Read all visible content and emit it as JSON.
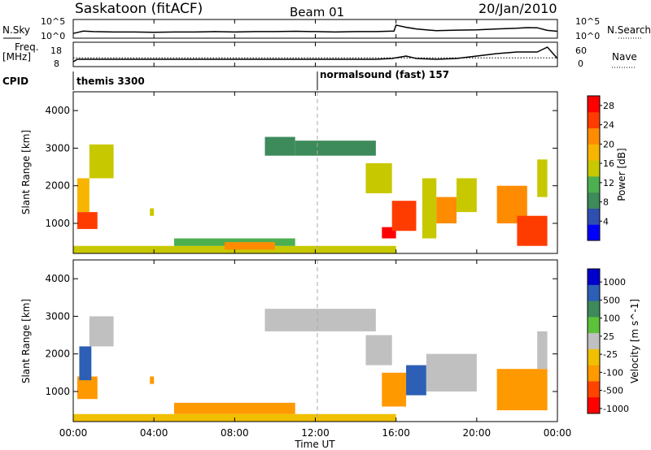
{
  "header": {
    "title": "Saskatoon (fitACF)",
    "beam": "Beam 01",
    "date": "20/Jan/2010"
  },
  "noise_panel": {
    "left_label": "N.Sky",
    "right_label": "N.Search",
    "y_ticks": [
      "10^5",
      "10^0"
    ]
  },
  "freq_panel": {
    "left_label_line1": "Freq.",
    "left_label_line2": "[MHz]",
    "left_ticks": [
      "18",
      "8"
    ],
    "right_label": "Nave",
    "right_ticks": [
      "60",
      "0"
    ]
  },
  "cpid": {
    "label": "CPID",
    "programs": [
      {
        "name": "themis 3300",
        "start_hour": 0
      },
      {
        "name": "normalsound (fast) 157",
        "start_hour": 12
      }
    ]
  },
  "x_axis": {
    "title": "Time UT",
    "ticks": [
      "00:00",
      "04:00",
      "08:00",
      "12:00",
      "16:00",
      "20:00",
      "00:00"
    ],
    "range_hours": [
      0,
      24
    ]
  },
  "colors": {
    "power_scale": [
      "#0000ff",
      "#2e4fb0",
      "#3d8a5b",
      "#4caf50",
      "#c8c800",
      "#f7b500",
      "#ff8c00",
      "#ff3c00",
      "#ff0000"
    ],
    "velocity_scale": [
      "#0000cc",
      "#2c5fb5",
      "#3d8a5b",
      "#5cc23a",
      "#c0c0c0",
      "#f0c000",
      "#ff9900",
      "#ff4400",
      "#ff0000"
    ],
    "missing": "#ffffff",
    "dashed_marker": "#999999"
  },
  "chart_data": [
    {
      "type": "line",
      "name": "noise",
      "x_unit": "hours UT",
      "y_scale": "log",
      "ylim": [
        1,
        100000
      ],
      "series": [
        {
          "name": "N.Sky",
          "x": [
            0,
            0.5,
            1,
            2,
            3,
            4,
            5,
            6,
            7,
            8,
            9,
            10,
            11,
            12,
            13,
            14,
            15,
            15.9,
            16,
            16.5,
            17,
            17.5,
            18,
            19,
            20,
            21,
            22,
            22.5,
            23,
            23.5,
            24
          ],
          "y": [
            10,
            60,
            40,
            30,
            30,
            25,
            30,
            30,
            40,
            30,
            40,
            40,
            50,
            40,
            30,
            40,
            40,
            60,
            5000,
            1000,
            300,
            150,
            80,
            120,
            150,
            300,
            500,
            800,
            700,
            100,
            50
          ]
        }
      ]
    },
    {
      "type": "line",
      "name": "frequency_and_nave",
      "x_unit": "hours UT",
      "series": [
        {
          "name": "Freq.",
          "unit": "MHz",
          "ylim": [
            8,
            18
          ],
          "x": [
            0,
            0.2,
            3,
            8,
            12,
            15,
            15.8,
            16.5,
            17,
            18,
            19,
            20,
            21,
            22,
            23,
            23.5,
            24
          ],
          "y": [
            9,
            10.5,
            10.5,
            10.5,
            10.5,
            10.5,
            11,
            12.5,
            11,
            10.5,
            11,
            12.5,
            14,
            15,
            15,
            18,
            11
          ]
        },
        {
          "name": "Nave",
          "ylim": [
            0,
            60
          ],
          "x": [
            0,
            4,
            8,
            12,
            15,
            16,
            17,
            18,
            20,
            21,
            22,
            23,
            24
          ],
          "y": [
            22,
            22,
            22,
            22,
            22,
            22,
            22,
            22,
            22,
            22,
            22,
            22,
            22
          ]
        }
      ]
    },
    {
      "type": "heatmap",
      "name": "power",
      "xlabel": "Time UT",
      "ylabel": "Slant Range [km]",
      "colorbar_label": "Power [dB]",
      "colorbar_ticks": [
        4,
        8,
        12,
        16,
        20,
        24,
        28
      ],
      "clim": [
        0,
        30
      ],
      "ylim": [
        200,
        4500
      ],
      "y_ticks": [
        1000,
        2000,
        3000,
        4000
      ],
      "patches": [
        {
          "t0": 0.2,
          "t1": 1.2,
          "r0": 850,
          "r1": 1300,
          "v": 26
        },
        {
          "t0": 0.2,
          "t1": 0.8,
          "r0": 1300,
          "r1": 2200,
          "v": 18
        },
        {
          "t0": 0.8,
          "t1": 2.0,
          "r0": 2200,
          "r1": 3100,
          "v": 14
        },
        {
          "t0": 3.8,
          "t1": 4.0,
          "r0": 1200,
          "r1": 1400,
          "v": 14
        },
        {
          "t0": 0.0,
          "t1": 16.0,
          "r0": 200,
          "r1": 400,
          "v": 16
        },
        {
          "t0": 5.0,
          "t1": 11.0,
          "r0": 400,
          "r1": 600,
          "v": 12
        },
        {
          "t0": 7.5,
          "t1": 10.0,
          "r0": 300,
          "r1": 500,
          "v": 22
        },
        {
          "t0": 9.5,
          "t1": 11.0,
          "r0": 2800,
          "r1": 3300,
          "v": 8
        },
        {
          "t0": 11.0,
          "t1": 15.0,
          "r0": 2800,
          "r1": 3200,
          "v": 8
        },
        {
          "t0": 14.5,
          "t1": 15.8,
          "r0": 1800,
          "r1": 2600,
          "v": 14
        },
        {
          "t0": 15.3,
          "t1": 16.0,
          "r0": 600,
          "r1": 900,
          "v": 28
        },
        {
          "t0": 15.8,
          "t1": 17.0,
          "r0": 800,
          "r1": 1600,
          "v": 26
        },
        {
          "t0": 17.3,
          "t1": 18.0,
          "r0": 600,
          "r1": 2200,
          "v": 14
        },
        {
          "t0": 18.0,
          "t1": 19.0,
          "r0": 1000,
          "r1": 1700,
          "v": 22
        },
        {
          "t0": 19.0,
          "t1": 20.0,
          "r0": 1300,
          "r1": 2200,
          "v": 16
        },
        {
          "t0": 21.0,
          "t1": 22.5,
          "r0": 1000,
          "r1": 2000,
          "v": 20
        },
        {
          "t0": 22.0,
          "t1": 23.5,
          "r0": 400,
          "r1": 1200,
          "v": 26
        },
        {
          "t0": 23.0,
          "t1": 23.5,
          "r0": 1700,
          "r1": 2700,
          "v": 14
        }
      ]
    },
    {
      "type": "heatmap",
      "name": "velocity",
      "xlabel": "Time UT",
      "ylabel": "Slant Range [km]",
      "colorbar_label": "Velocity [m s^-1]",
      "colorbar_ticks": [
        1000,
        500,
        100,
        25,
        -25,
        -100,
        -500,
        -1000
      ],
      "ylim": [
        200,
        4500
      ],
      "y_ticks": [
        1000,
        2000,
        3000,
        4000
      ],
      "patches": [
        {
          "t0": 0.2,
          "t1": 1.2,
          "r0": 800,
          "r1": 1400,
          "v": -300
        },
        {
          "t0": 0.3,
          "t1": 0.9,
          "r0": 1300,
          "r1": 2200,
          "v": 150
        },
        {
          "t0": 0.8,
          "t1": 2.0,
          "r0": 2200,
          "r1": 3000,
          "v": 0
        },
        {
          "t0": 3.8,
          "t1": 4.0,
          "r0": 1200,
          "r1": 1400,
          "v": -300
        },
        {
          "t0": 0.0,
          "t1": 16.0,
          "r0": 200,
          "r1": 400,
          "v": -60
        },
        {
          "t0": 5.0,
          "t1": 11.0,
          "r0": 400,
          "r1": 700,
          "v": -150
        },
        {
          "t0": 9.5,
          "t1": 15.0,
          "r0": 2600,
          "r1": 3200,
          "v": 0
        },
        {
          "t0": 14.5,
          "t1": 15.8,
          "r0": 1700,
          "r1": 2500,
          "v": 0
        },
        {
          "t0": 15.3,
          "t1": 16.5,
          "r0": 600,
          "r1": 1500,
          "v": -200
        },
        {
          "t0": 16.5,
          "t1": 17.5,
          "r0": 900,
          "r1": 1700,
          "v": 200
        },
        {
          "t0": 17.5,
          "t1": 20.0,
          "r0": 1000,
          "r1": 2000,
          "v": 0
        },
        {
          "t0": 21.0,
          "t1": 23.5,
          "r0": 500,
          "r1": 1600,
          "v": -300
        },
        {
          "t0": 23.0,
          "t1": 23.5,
          "r0": 1600,
          "r1": 2600,
          "v": 0
        }
      ]
    }
  ]
}
